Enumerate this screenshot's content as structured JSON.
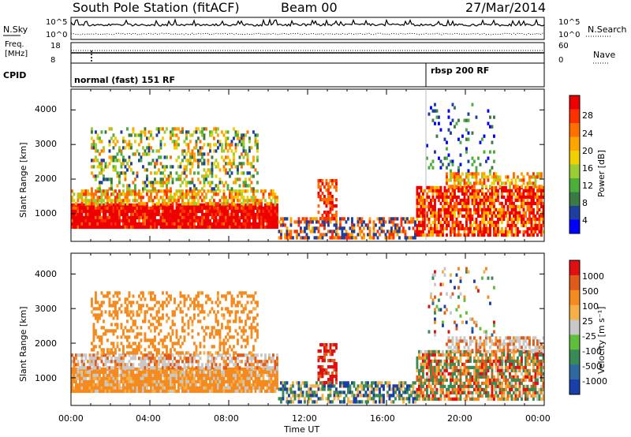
{
  "header": {
    "station": "South Pole Station (fitACF)",
    "beam": "Beam 00",
    "date": "27/Mar/2014"
  },
  "top_panel": {
    "left_label": "N.Sky",
    "right_label": "N.Search",
    "y_ticks_left": [
      "10^5",
      "10^0"
    ],
    "y_ticks_right": [
      "10^5",
      "10^0"
    ]
  },
  "freq_panel": {
    "left_label_1": "Freq.",
    "left_label_2": "[MHz]",
    "right_label": "Nave",
    "y_ticks_left": [
      "18",
      "8"
    ],
    "y_ticks_right": [
      "60",
      "0"
    ]
  },
  "cpid_panel": {
    "label": "CPID",
    "program_1": "normal (fast) 151 RF",
    "program_2": "rbsp 200 RF"
  },
  "chart_data": [
    {
      "type": "heatmap",
      "name": "power",
      "ylabel": "Slant Range [km]",
      "ylim": [
        200,
        4600
      ],
      "y_ticks": [
        "1000",
        "2000",
        "3000",
        "4000"
      ],
      "colorbar_label": "Power [dB]",
      "colorbar_ticks": [
        "28",
        "24",
        "20",
        "16",
        "12",
        "8",
        "4"
      ],
      "colors": [
        "#0000ff",
        "#1e3fa0",
        "#3a7a45",
        "#4caf3a",
        "#9acd32",
        "#f0d000",
        "#ffa500",
        "#ff7000",
        "#ff3000",
        "#ee0000"
      ]
    },
    {
      "type": "heatmap",
      "name": "velocity",
      "ylabel": "Slant Range [km]",
      "ylim": [
        200,
        4600
      ],
      "y_ticks": [
        "1000",
        "2000",
        "3000",
        "4000"
      ],
      "colorbar_label": "Velocity [m s⁻¹]",
      "colorbar_ticks": [
        "1000",
        "500",
        "100",
        "25",
        "-25",
        "-100",
        "-500",
        "-1000"
      ],
      "colors": [
        "#1a3fa8",
        "#2e6aa0",
        "#3a8a55",
        "#5fbf3a",
        "#c8c8c8",
        "#f5b04a",
        "#f58a1e",
        "#e05a1a",
        "#e01010"
      ]
    }
  ],
  "x_axis": {
    "label": "Time UT",
    "ticks": [
      "00:00",
      "04:00",
      "08:00",
      "12:00",
      "16:00",
      "20:00",
      "00:00"
    ]
  }
}
